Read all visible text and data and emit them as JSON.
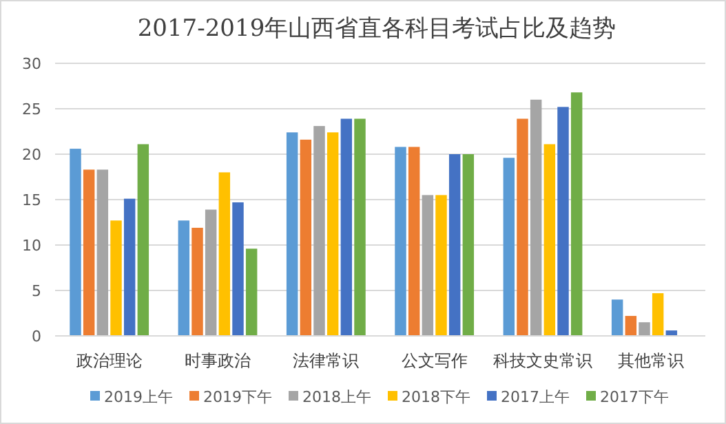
{
  "chart_data": {
    "type": "bar",
    "title": "2017-2019年山西省直各科目考试占比及趋势",
    "categories": [
      "政治理论",
      "时事政治",
      "法律常识",
      "公文写作",
      "科技文史常识",
      "其他常识"
    ],
    "series": [
      {
        "name": "2019上午",
        "color": "#5b9bd5",
        "values": [
          20.6,
          12.7,
          22.4,
          20.8,
          19.6,
          4.0
        ]
      },
      {
        "name": "2019下午",
        "color": "#ed7d31",
        "values": [
          18.3,
          11.9,
          21.6,
          20.8,
          23.9,
          2.2
        ]
      },
      {
        "name": "2018上午",
        "color": "#a5a5a5",
        "values": [
          18.3,
          13.9,
          23.1,
          15.5,
          26.0,
          1.5
        ]
      },
      {
        "name": "2018下午",
        "color": "#ffc000",
        "values": [
          12.7,
          18.0,
          22.4,
          15.5,
          21.1,
          4.7
        ]
      },
      {
        "name": "2017上午",
        "color": "#4472c4",
        "values": [
          15.1,
          14.7,
          23.9,
          20.0,
          25.2,
          0.6
        ]
      },
      {
        "name": "2017下午",
        "color": "#70ad47",
        "values": [
          21.1,
          9.6,
          23.9,
          20.0,
          26.8,
          null
        ]
      }
    ],
    "ylim": [
      0,
      30
    ],
    "yticks": [
      0,
      5,
      10,
      15,
      20,
      25,
      30
    ],
    "grid": "y",
    "legend": "bottom"
  }
}
